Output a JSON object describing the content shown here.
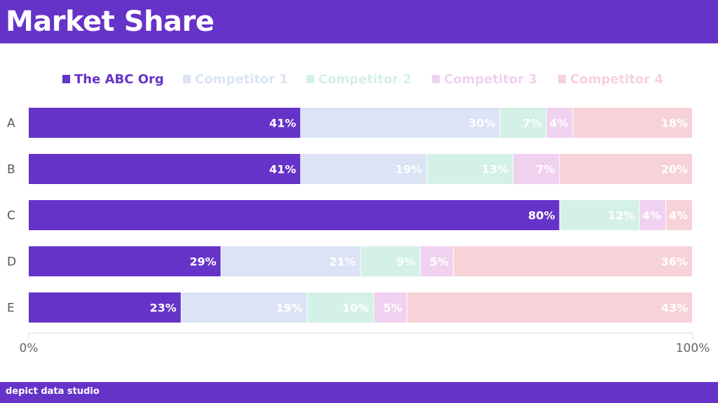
{
  "header": {
    "title": "Market Share"
  },
  "footer": {
    "brand": "depict data studio"
  },
  "chart_data": {
    "type": "bar",
    "orientation": "horizontal",
    "stacked": "100%",
    "categories": [
      "A",
      "B",
      "C",
      "D",
      "E"
    ],
    "series": [
      {
        "name": "The ABC Org",
        "color": "#6633c8",
        "values": [
          41,
          41,
          80,
          29,
          23
        ]
      },
      {
        "name": "Competitor 1",
        "color": "#dbe3f5",
        "values": [
          30,
          19,
          0,
          21,
          19
        ]
      },
      {
        "name": "Competitor 2",
        "color": "#d3f1e7",
        "values": [
          7,
          13,
          12,
          9,
          10
        ]
      },
      {
        "name": "Competitor 3",
        "color": "#f1d1f0",
        "values": [
          4,
          7,
          4,
          5,
          5
        ]
      },
      {
        "name": "Competitor 4",
        "color": "#f7d2d9",
        "values": [
          18,
          20,
          4,
          36,
          43
        ]
      }
    ],
    "value_suffix": "%",
    "xlim": [
      0,
      100
    ],
    "x_ticks": [
      "0%",
      "100%"
    ],
    "legend": "top",
    "grid": false
  }
}
